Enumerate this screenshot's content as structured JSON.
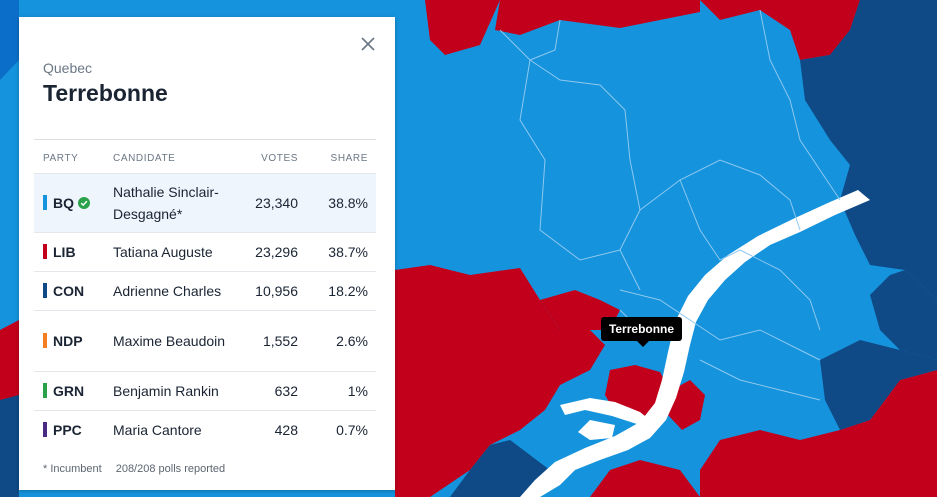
{
  "colors": {
    "bq": "#1593dc",
    "lib": "#c3001b",
    "con": "#0f4a86",
    "ndp": "#f37f21",
    "grn": "#2aa24a",
    "ppc": "#4a2b84",
    "water": "#ffffff",
    "check": "#2aa24a"
  },
  "panel": {
    "province": "Quebec",
    "riding": "Terrebonne",
    "close_icon": "close-icon",
    "headers": {
      "party": "PARTY",
      "candidate": "CANDIDATE",
      "votes": "VOTES",
      "share": "SHARE"
    },
    "rows": [
      {
        "party": "BQ",
        "candidate": "Nathalie Sinclair-Desgagné*",
        "votes": "23,340",
        "share": "38.8%",
        "winner": true
      },
      {
        "party": "LIB",
        "candidate": "Tatiana Auguste",
        "votes": "23,296",
        "share": "38.7%",
        "winner": false
      },
      {
        "party": "CON",
        "candidate": "Adrienne Charles",
        "votes": "10,956",
        "share": "18.2%",
        "winner": false
      },
      {
        "party": "NDP",
        "candidate": "Maxime Beaudoin",
        "votes": "1,552",
        "share": "2.6%",
        "winner": false
      },
      {
        "party": "GRN",
        "candidate": "Benjamin Rankin",
        "votes": "632",
        "share": "1%",
        "winner": false
      },
      {
        "party": "PPC",
        "candidate": "Maria Cantore",
        "votes": "428",
        "share": "0.7%",
        "winner": false
      }
    ],
    "footer": {
      "incumbent_note": "* Incumbent",
      "polls": "208/208 polls reported"
    }
  },
  "map": {
    "tooltip": "Terrebonne"
  }
}
